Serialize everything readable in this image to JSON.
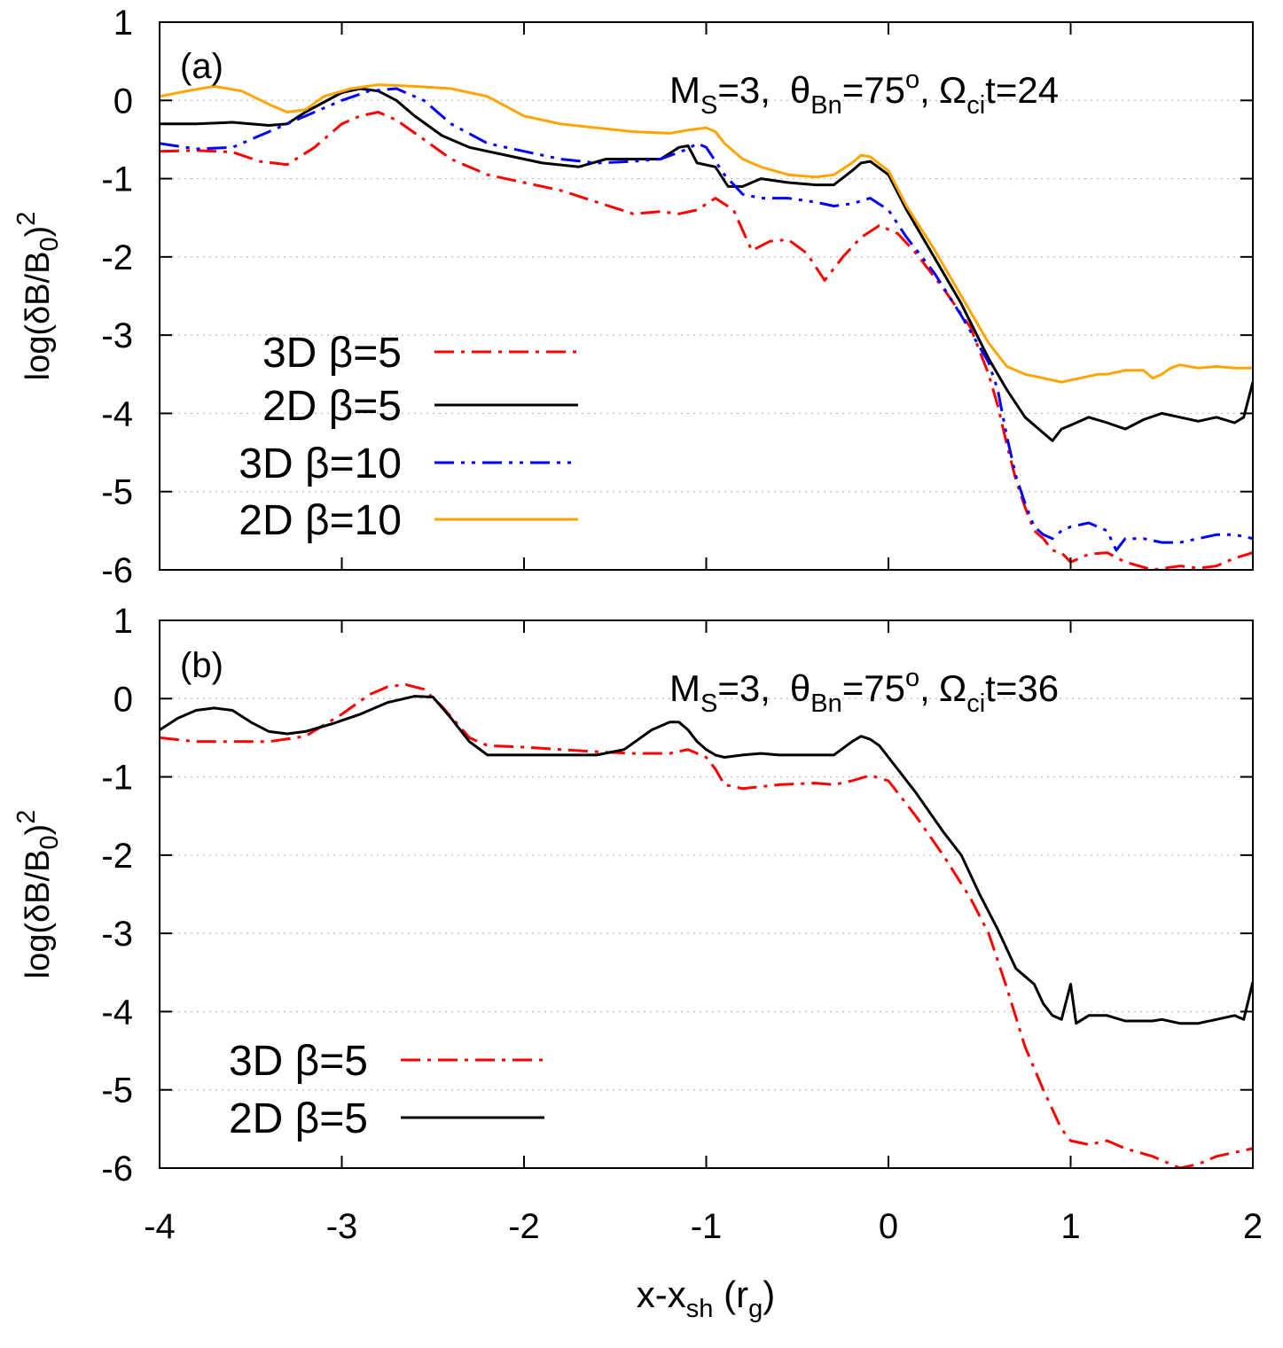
{
  "figure": {
    "xlabel": {
      "main": "x-x",
      "sub": "sh",
      "unit_open": " (r",
      "unit_sub": "g",
      "unit_close": ")"
    },
    "ylabel": {
      "pre": "log(δB/B",
      "sub": "0",
      "post": ")",
      "sup": "2"
    }
  },
  "chart_data": [
    {
      "type": "line",
      "panel": "(a)",
      "annotation": {
        "m": "M",
        "m_sub": "S",
        "m_val": "=3,",
        "theta": "θ",
        "theta_sub": "Bn",
        "theta_val": "=75",
        "theta_sup": "o",
        "comma": ",",
        "omega": "Ω",
        "omega_sub": "ci",
        "omega_val": "t=24"
      },
      "xlim": [
        -4,
        2
      ],
      "ylim": [
        -6,
        1
      ],
      "xticks": [
        "-4",
        "-3",
        "-2",
        "-1",
        "0",
        "1",
        "2"
      ],
      "yticks": [
        "1",
        "0",
        "-1",
        "-2",
        "-3",
        "-4",
        "-5",
        "-6"
      ],
      "grid": "horizontal dotted",
      "legend_position": "lower-left",
      "series": [
        {
          "name": "3D β=5",
          "color": "#ff0000",
          "dash": "dashdot",
          "x": [
            -4,
            -3.8,
            -3.6,
            -3.45,
            -3.3,
            -3.15,
            -3.0,
            -2.9,
            -2.8,
            -2.7,
            -2.55,
            -2.4,
            -2.2,
            -2.0,
            -1.8,
            -1.6,
            -1.4,
            -1.25,
            -1.15,
            -1.05,
            -0.95,
            -0.85,
            -0.75,
            -0.65,
            -0.55,
            -0.45,
            -0.35,
            -0.25,
            -0.15,
            -0.05,
            0.05,
            0.15,
            0.3,
            0.45,
            0.55,
            0.6,
            0.65,
            0.7,
            0.75,
            0.8,
            0.85,
            0.9,
            0.95,
            1.0,
            1.1,
            1.2,
            1.3,
            1.45,
            1.6,
            1.7,
            1.8,
            1.9,
            2.0
          ],
          "y": [
            -0.65,
            -0.64,
            -0.66,
            -0.78,
            -0.82,
            -0.6,
            -0.3,
            -0.2,
            -0.15,
            -0.25,
            -0.5,
            -0.75,
            -0.95,
            -1.05,
            -1.15,
            -1.3,
            -1.45,
            -1.42,
            -1.45,
            -1.4,
            -1.25,
            -1.4,
            -1.92,
            -1.8,
            -1.78,
            -1.95,
            -2.3,
            -2.0,
            -1.75,
            -1.6,
            -1.7,
            -1.95,
            -2.4,
            -2.9,
            -3.5,
            -3.9,
            -4.4,
            -4.85,
            -5.2,
            -5.5,
            -5.6,
            -5.75,
            -5.78,
            -5.9,
            -5.8,
            -5.78,
            -5.9,
            -6.0,
            -5.95,
            -5.98,
            -5.95,
            -5.85,
            -5.78
          ]
        },
        {
          "name": "2D β=5",
          "color": "#000000",
          "dash": "solid",
          "x": [
            -4,
            -3.8,
            -3.6,
            -3.4,
            -3.3,
            -3.2,
            -3.0,
            -2.9,
            -2.8,
            -2.7,
            -2.6,
            -2.45,
            -2.3,
            -2.1,
            -1.9,
            -1.7,
            -1.55,
            -1.4,
            -1.25,
            -1.15,
            -1.1,
            -1.05,
            -0.95,
            -0.88,
            -0.8,
            -0.7,
            -0.55,
            -0.4,
            -0.3,
            -0.2,
            -0.15,
            -0.1,
            0.0,
            0.1,
            0.25,
            0.4,
            0.55,
            0.65,
            0.75,
            0.85,
            0.9,
            0.95,
            1.0,
            1.1,
            1.2,
            1.3,
            1.4,
            1.5,
            1.6,
            1.7,
            1.8,
            1.9,
            1.95,
            2.0
          ],
          "y": [
            -0.3,
            -0.3,
            -0.28,
            -0.32,
            -0.3,
            -0.15,
            0.1,
            0.15,
            0.12,
            0.0,
            -0.2,
            -0.45,
            -0.6,
            -0.7,
            -0.8,
            -0.85,
            -0.75,
            -0.75,
            -0.75,
            -0.6,
            -0.58,
            -0.8,
            -0.85,
            -1.1,
            -1.1,
            -1.0,
            -1.05,
            -1.08,
            -1.08,
            -0.9,
            -0.8,
            -0.78,
            -0.95,
            -1.4,
            -2.0,
            -2.6,
            -3.3,
            -3.7,
            -4.05,
            -4.25,
            -4.35,
            -4.2,
            -4.15,
            -4.05,
            -4.12,
            -4.2,
            -4.08,
            -4.0,
            -4.05,
            -4.1,
            -4.05,
            -4.12,
            -4.05,
            -3.6
          ]
        },
        {
          "name": "3D β=10",
          "color": "#0000ff",
          "dash": "dashdotdot",
          "x": [
            -4,
            -3.8,
            -3.6,
            -3.45,
            -3.3,
            -3.15,
            -3.0,
            -2.85,
            -2.7,
            -2.55,
            -2.4,
            -2.2,
            -2.0,
            -1.8,
            -1.6,
            -1.4,
            -1.25,
            -1.1,
            -1.05,
            -1.0,
            -0.9,
            -0.8,
            -0.7,
            -0.55,
            -0.4,
            -0.3,
            -0.2,
            -0.1,
            0.0,
            0.1,
            0.25,
            0.4,
            0.55,
            0.6,
            0.65,
            0.7,
            0.75,
            0.8,
            0.85,
            0.9,
            0.95,
            1.0,
            1.1,
            1.2,
            1.25,
            1.3,
            1.4,
            1.5,
            1.6,
            1.7,
            1.8,
            1.9,
            2.0
          ],
          "y": [
            -0.55,
            -0.62,
            -0.6,
            -0.45,
            -0.3,
            -0.15,
            0.0,
            0.12,
            0.15,
            0.0,
            -0.3,
            -0.55,
            -0.65,
            -0.75,
            -0.8,
            -0.78,
            -0.75,
            -0.62,
            -0.55,
            -0.6,
            -0.95,
            -1.2,
            -1.25,
            -1.25,
            -1.3,
            -1.35,
            -1.32,
            -1.25,
            -1.4,
            -1.75,
            -2.2,
            -2.75,
            -3.35,
            -3.7,
            -4.3,
            -4.8,
            -5.15,
            -5.45,
            -5.55,
            -5.6,
            -5.5,
            -5.45,
            -5.4,
            -5.5,
            -5.75,
            -5.6,
            -5.6,
            -5.65,
            -5.65,
            -5.6,
            -5.55,
            -5.55,
            -5.6
          ]
        },
        {
          "name": "2D β=10",
          "color": "#ffa500",
          "dash": "solid",
          "x": [
            -4,
            -3.85,
            -3.7,
            -3.55,
            -3.4,
            -3.3,
            -3.2,
            -3.1,
            -2.95,
            -2.8,
            -2.6,
            -2.4,
            -2.2,
            -2.0,
            -1.8,
            -1.6,
            -1.4,
            -1.2,
            -1.1,
            -1.0,
            -0.95,
            -0.9,
            -0.8,
            -0.7,
            -0.55,
            -0.4,
            -0.3,
            -0.2,
            -0.15,
            -0.1,
            0.0,
            0.1,
            0.25,
            0.4,
            0.55,
            0.65,
            0.75,
            0.85,
            0.95,
            1.05,
            1.15,
            1.2,
            1.3,
            1.4,
            1.45,
            1.5,
            1.55,
            1.6,
            1.65,
            1.7,
            1.8,
            1.9,
            2.0
          ],
          "y": [
            0.05,
            0.12,
            0.18,
            0.12,
            -0.05,
            -0.15,
            -0.12,
            0.05,
            0.15,
            0.2,
            0.18,
            0.15,
            0.05,
            -0.2,
            -0.3,
            -0.35,
            -0.4,
            -0.42,
            -0.38,
            -0.35,
            -0.4,
            -0.55,
            -0.75,
            -0.85,
            -0.95,
            -0.98,
            -0.95,
            -0.8,
            -0.7,
            -0.72,
            -0.9,
            -1.35,
            -1.9,
            -2.5,
            -3.1,
            -3.4,
            -3.5,
            -3.55,
            -3.6,
            -3.55,
            -3.5,
            -3.5,
            -3.45,
            -3.45,
            -3.55,
            -3.5,
            -3.42,
            -3.38,
            -3.4,
            -3.42,
            -3.4,
            -3.42,
            -3.42
          ]
        }
      ]
    },
    {
      "type": "line",
      "panel": "(b)",
      "annotation": {
        "m": "M",
        "m_sub": "S",
        "m_val": "=3,",
        "theta": "θ",
        "theta_sub": "Bn",
        "theta_val": "=75",
        "theta_sup": "o",
        "comma": ",",
        "omega": "Ω",
        "omega_sub": "ci",
        "omega_val": "t=36"
      },
      "xlim": [
        -4,
        2
      ],
      "ylim": [
        -6,
        1
      ],
      "xticks": [
        "-4",
        "-3",
        "-2",
        "-1",
        "0",
        "1",
        "2"
      ],
      "yticks": [
        "1",
        "0",
        "-1",
        "-2",
        "-3",
        "-4",
        "-5",
        "-6"
      ],
      "grid": "horizontal dotted",
      "legend_position": "lower-left",
      "series": [
        {
          "name": "3D β=5",
          "color": "#ff0000",
          "dash": "dashdot",
          "x": [
            -4,
            -3.8,
            -3.6,
            -3.4,
            -3.2,
            -3.0,
            -2.85,
            -2.75,
            -2.65,
            -2.55,
            -2.45,
            -2.3,
            -2.2,
            -2.0,
            -1.8,
            -1.6,
            -1.4,
            -1.2,
            -1.1,
            -1.0,
            -0.95,
            -0.9,
            -0.8,
            -0.6,
            -0.4,
            -0.3,
            -0.2,
            -0.1,
            0.0,
            0.15,
            0.3,
            0.45,
            0.55,
            0.65,
            0.75,
            0.85,
            0.95,
            1.0,
            1.1,
            1.2,
            1.3,
            1.45,
            1.55,
            1.6,
            1.7,
            1.8,
            1.9,
            2.0
          ],
          "y": [
            -0.5,
            -0.55,
            -0.55,
            -0.55,
            -0.48,
            -0.2,
            0.05,
            0.15,
            0.18,
            0.12,
            -0.1,
            -0.5,
            -0.6,
            -0.62,
            -0.65,
            -0.68,
            -0.7,
            -0.7,
            -0.65,
            -0.75,
            -0.9,
            -1.1,
            -1.15,
            -1.1,
            -1.08,
            -1.1,
            -1.05,
            -0.98,
            -1.05,
            -1.5,
            -2.0,
            -2.55,
            -3.0,
            -3.7,
            -4.45,
            -5.0,
            -5.5,
            -5.65,
            -5.7,
            -5.65,
            -5.75,
            -5.85,
            -5.95,
            -6.0,
            -5.95,
            -5.85,
            -5.8,
            -5.75
          ]
        },
        {
          "name": "2D β=5",
          "color": "#000000",
          "dash": "solid",
          "x": [
            -4,
            -3.9,
            -3.8,
            -3.7,
            -3.6,
            -3.5,
            -3.4,
            -3.3,
            -3.2,
            -3.05,
            -2.9,
            -2.75,
            -2.6,
            -2.5,
            -2.4,
            -2.3,
            -2.2,
            -2.0,
            -1.8,
            -1.6,
            -1.45,
            -1.3,
            -1.2,
            -1.15,
            -1.1,
            -1.05,
            -1.0,
            -0.95,
            -0.9,
            -0.8,
            -0.7,
            -0.6,
            -0.5,
            -0.4,
            -0.3,
            -0.2,
            -0.15,
            -0.1,
            -0.05,
            0.0,
            0.15,
            0.3,
            0.4,
            0.5,
            0.6,
            0.7,
            0.75,
            0.8,
            0.85,
            0.9,
            0.95,
            1.0,
            1.03,
            1.1,
            1.2,
            1.3,
            1.35,
            1.45,
            1.5,
            1.6,
            1.7,
            1.8,
            1.9,
            1.95,
            2.0
          ],
          "y": [
            -0.4,
            -0.25,
            -0.15,
            -0.12,
            -0.15,
            -0.3,
            -0.42,
            -0.45,
            -0.42,
            -0.32,
            -0.2,
            -0.05,
            0.03,
            0.02,
            -0.25,
            -0.55,
            -0.72,
            -0.72,
            -0.72,
            -0.72,
            -0.65,
            -0.4,
            -0.3,
            -0.3,
            -0.4,
            -0.55,
            -0.65,
            -0.72,
            -0.75,
            -0.72,
            -0.7,
            -0.72,
            -0.72,
            -0.72,
            -0.72,
            -0.55,
            -0.48,
            -0.52,
            -0.6,
            -0.75,
            -1.2,
            -1.7,
            -2.0,
            -2.5,
            -2.95,
            -3.45,
            -3.55,
            -3.65,
            -3.9,
            -4.05,
            -4.1,
            -3.65,
            -4.15,
            -4.05,
            -4.05,
            -4.12,
            -4.12,
            -4.12,
            -4.1,
            -4.15,
            -4.15,
            -4.1,
            -4.05,
            -4.1,
            -3.62
          ]
        }
      ]
    }
  ]
}
